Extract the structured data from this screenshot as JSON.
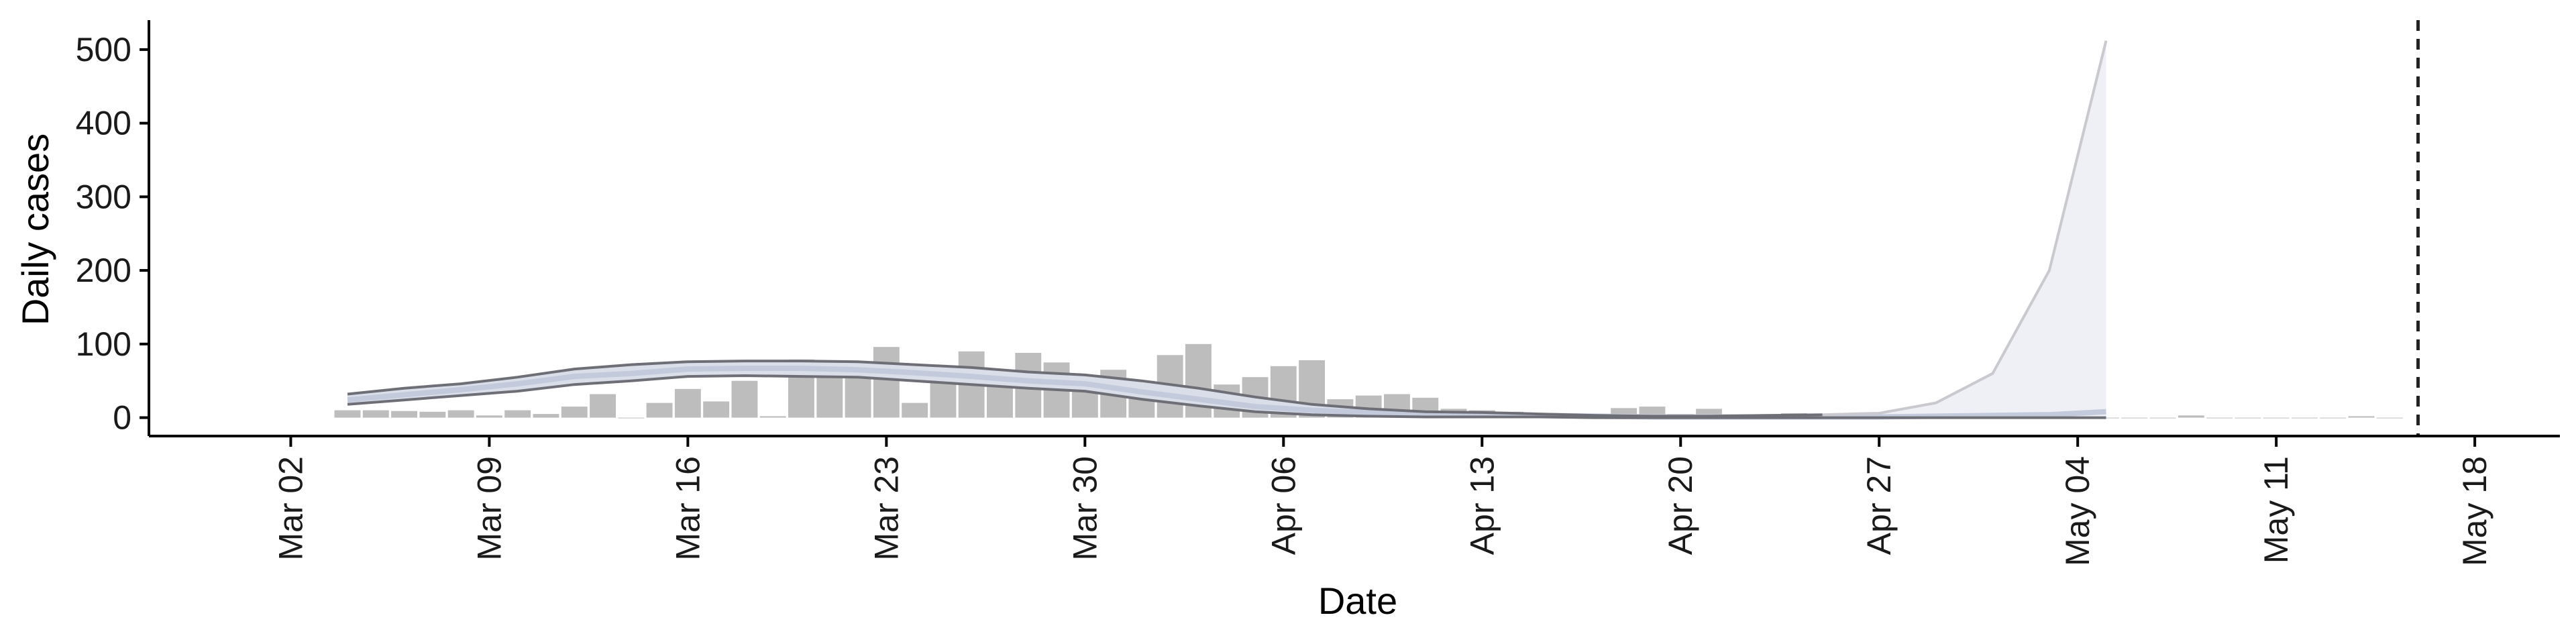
{
  "chart_data": {
    "type": "bar",
    "title": "",
    "xlabel": "Date",
    "ylabel": "Daily cases",
    "ylim": [
      -25,
      540
    ],
    "xlim": [
      "2020-02-26",
      "2020-05-21"
    ],
    "yticks": [
      0,
      100,
      200,
      300,
      400,
      500
    ],
    "xticks": [
      {
        "date": "2020-03-02",
        "label": "Mar 02"
      },
      {
        "date": "2020-03-09",
        "label": "Mar 09"
      },
      {
        "date": "2020-03-16",
        "label": "Mar 16"
      },
      {
        "date": "2020-03-23",
        "label": "Mar 23"
      },
      {
        "date": "2020-03-30",
        "label": "Mar 30"
      },
      {
        "date": "2020-04-06",
        "label": "Apr 06"
      },
      {
        "date": "2020-04-13",
        "label": "Apr 13"
      },
      {
        "date": "2020-04-20",
        "label": "Apr 20"
      },
      {
        "date": "2020-04-27",
        "label": "Apr 27"
      },
      {
        "date": "2020-05-04",
        "label": "May 04"
      },
      {
        "date": "2020-05-11",
        "label": "May 11"
      },
      {
        "date": "2020-05-18",
        "label": "May 18"
      }
    ],
    "grid": false,
    "legend": "none",
    "vline_date": "2020-05-16",
    "colors": {
      "bars": "#bdbdbd",
      "bar_stroke": "#ffffff",
      "band_outer_line": "#6e6e76",
      "band_fill": "#c8cfdd",
      "median_line": "#c3cadb",
      "forecast_fill": "#eef0f6",
      "forecast_line": "#c9c9cf",
      "vline": "#222222",
      "axis": "#000000"
    },
    "observed": {
      "dates": [
        "2020-03-04",
        "2020-03-05",
        "2020-03-06",
        "2020-03-07",
        "2020-03-08",
        "2020-03-09",
        "2020-03-10",
        "2020-03-11",
        "2020-03-12",
        "2020-03-13",
        "2020-03-14",
        "2020-03-15",
        "2020-03-16",
        "2020-03-17",
        "2020-03-18",
        "2020-03-19",
        "2020-03-20",
        "2020-03-21",
        "2020-03-22",
        "2020-03-23",
        "2020-03-24",
        "2020-03-25",
        "2020-03-26",
        "2020-03-27",
        "2020-03-28",
        "2020-03-29",
        "2020-03-30",
        "2020-03-31",
        "2020-04-01",
        "2020-04-02",
        "2020-04-03",
        "2020-04-04",
        "2020-04-05",
        "2020-04-06",
        "2020-04-07",
        "2020-04-08",
        "2020-04-09",
        "2020-04-10",
        "2020-04-11",
        "2020-04-12",
        "2020-04-13",
        "2020-04-14",
        "2020-04-15",
        "2020-04-16",
        "2020-04-17",
        "2020-04-18",
        "2020-04-19",
        "2020-04-20",
        "2020-04-21",
        "2020-04-22",
        "2020-04-23",
        "2020-04-24",
        "2020-04-25",
        "2020-04-26",
        "2020-04-27",
        "2020-04-28",
        "2020-04-29",
        "2020-04-30",
        "2020-05-01",
        "2020-05-02",
        "2020-05-03",
        "2020-05-04",
        "2020-05-05",
        "2020-05-06",
        "2020-05-07",
        "2020-05-08",
        "2020-05-09",
        "2020-05-10",
        "2020-05-11",
        "2020-05-12",
        "2020-05-13",
        "2020-05-14",
        "2020-05-15"
      ],
      "values": [
        10,
        10,
        9,
        8,
        10,
        3,
        10,
        5,
        15,
        32,
        0,
        20,
        39,
        22,
        50,
        2,
        79,
        77,
        63,
        96,
        20,
        60,
        90,
        54,
        88,
        75,
        55,
        65,
        50,
        85,
        100,
        45,
        55,
        70,
        78,
        25,
        30,
        32,
        27,
        12,
        10,
        8,
        5,
        5,
        5,
        13,
        15,
        5,
        12,
        4,
        3,
        6,
        2,
        3,
        2,
        1,
        2,
        1,
        1,
        1,
        1,
        1,
        0,
        0,
        0,
        3,
        0,
        0,
        0,
        0,
        0,
        2,
        0
      ]
    },
    "nowcast": {
      "dates": [
        "2020-03-04",
        "2020-03-06",
        "2020-03-08",
        "2020-03-10",
        "2020-03-12",
        "2020-03-14",
        "2020-03-16",
        "2020-03-18",
        "2020-03-20",
        "2020-03-22",
        "2020-03-24",
        "2020-03-26",
        "2020-03-28",
        "2020-03-30",
        "2020-04-01",
        "2020-04-03",
        "2020-04-05",
        "2020-04-07",
        "2020-04-09",
        "2020-04-11",
        "2020-04-13",
        "2020-04-15",
        "2020-04-17",
        "2020-04-19",
        "2020-04-21",
        "2020-04-23",
        "2020-04-25",
        "2020-04-27",
        "2020-04-29",
        "2020-05-01",
        "2020-05-03",
        "2020-05-05"
      ],
      "median": [
        24,
        31,
        38,
        46,
        56,
        60,
        66,
        67,
        67,
        65,
        61,
        56,
        50,
        46,
        35,
        25,
        15,
        10,
        7,
        5,
        4,
        3,
        2,
        1,
        1,
        1,
        1,
        1,
        2,
        3,
        4,
        8
      ],
      "lower": [
        18,
        24,
        30,
        36,
        45,
        50,
        56,
        57,
        56,
        55,
        50,
        45,
        40,
        36,
        25,
        16,
        8,
        4,
        2,
        1,
        1,
        1,
        0,
        0,
        0,
        0,
        0,
        0,
        0,
        0,
        0,
        0
      ],
      "upper": [
        32,
        40,
        46,
        55,
        66,
        72,
        76,
        77,
        77,
        76,
        72,
        68,
        62,
        58,
        50,
        40,
        28,
        18,
        12,
        8,
        7,
        5,
        3,
        2,
        2,
        3,
        4,
        6,
        20,
        60,
        200,
        512
      ]
    }
  }
}
